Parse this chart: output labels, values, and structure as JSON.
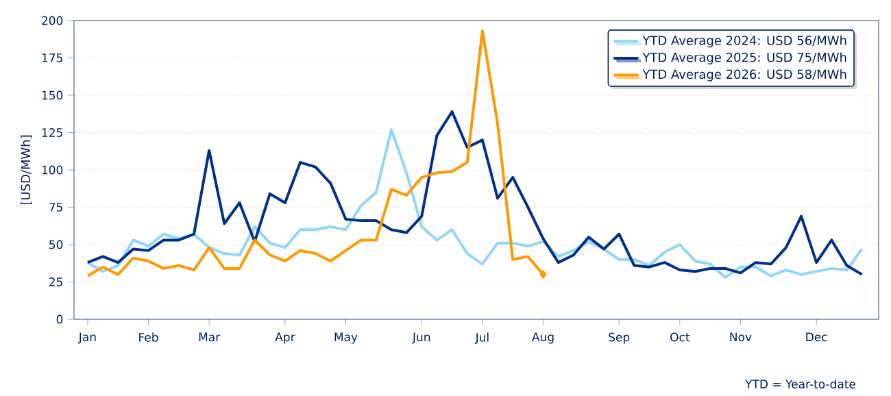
{
  "chart_data": {
    "type": "line",
    "ylabel": "[USD/MWh]",
    "categories": [
      "Jan",
      null,
      null,
      null,
      "Feb",
      null,
      null,
      null,
      "Mar",
      null,
      null,
      null,
      null,
      "Apr",
      null,
      null,
      null,
      "May",
      null,
      null,
      null,
      null,
      "Jun",
      null,
      null,
      null,
      "Jul",
      null,
      null,
      null,
      "Aug",
      null,
      null,
      null,
      null,
      "Sep",
      null,
      null,
      null,
      "Oct",
      null,
      null,
      null,
      "Nov",
      null,
      null,
      null,
      null,
      "Dec",
      null,
      null,
      null
    ],
    "series": [
      {
        "name": "YTD Average 2024: USD 56/MWh",
        "color": "#91d5f7",
        "values": [
          38,
          32,
          36,
          53,
          49,
          57,
          54,
          57,
          48,
          44,
          43,
          62,
          51,
          48,
          60,
          60,
          62,
          60,
          76,
          85,
          127,
          98,
          62,
          53,
          60,
          44,
          37,
          51,
          51,
          49,
          52,
          42,
          46,
          52,
          47,
          40,
          40,
          36,
          45,
          50,
          39,
          37,
          28,
          35,
          35,
          29,
          33,
          30,
          32,
          34,
          33,
          47
        ]
      },
      {
        "name": "YTD Average 2025: USD 75/MWh",
        "color": "#003087",
        "values": [
          38,
          42,
          38,
          47,
          46,
          53,
          53,
          57,
          113,
          64,
          78,
          52,
          84,
          78,
          105,
          102,
          91,
          67,
          66,
          66,
          60,
          58,
          69,
          123,
          139,
          115,
          120,
          81,
          95,
          75,
          54,
          38,
          43,
          55,
          47,
          57,
          36,
          35,
          38,
          33,
          32,
          34,
          34,
          31,
          38,
          37,
          48,
          69,
          38,
          53,
          36,
          30
        ]
      },
      {
        "name": "YTD Average 2026: USD 58/MWh",
        "color": "#ff9900",
        "values": [
          29,
          35,
          30,
          41,
          39,
          34,
          36,
          33,
          48,
          34,
          34,
          53,
          43,
          39,
          46,
          44,
          39,
          46,
          53,
          53,
          87,
          83,
          95,
          98,
          99,
          105,
          193,
          131,
          40,
          42,
          30,
          null,
          null,
          null,
          null,
          null,
          null,
          null,
          null,
          null,
          null,
          null,
          null,
          null,
          null,
          null,
          null,
          null,
          null,
          null,
          null,
          null
        ]
      },
      {
        "type": "scatter",
        "color": "#ff9900",
        "marker": "diamond",
        "values": [
          null,
          null,
          null,
          null,
          null,
          null,
          null,
          null,
          null,
          null,
          null,
          null,
          null,
          null,
          null,
          null,
          null,
          null,
          null,
          null,
          null,
          null,
          null,
          null,
          null,
          null,
          null,
          null,
          null,
          null,
          30,
          null,
          null,
          null,
          null,
          null,
          null,
          null,
          null,
          null,
          null,
          null,
          null,
          null,
          null,
          null,
          null,
          null,
          null,
          null,
          null,
          null
        ]
      }
    ],
    "ylim": [
      0,
      200
    ],
    "yticks": [
      0,
      25,
      50,
      75,
      100,
      125,
      150,
      175,
      200
    ],
    "grid": "y",
    "legend": "top right",
    "annotations": [
      "YTD = Year-to-date"
    ]
  }
}
